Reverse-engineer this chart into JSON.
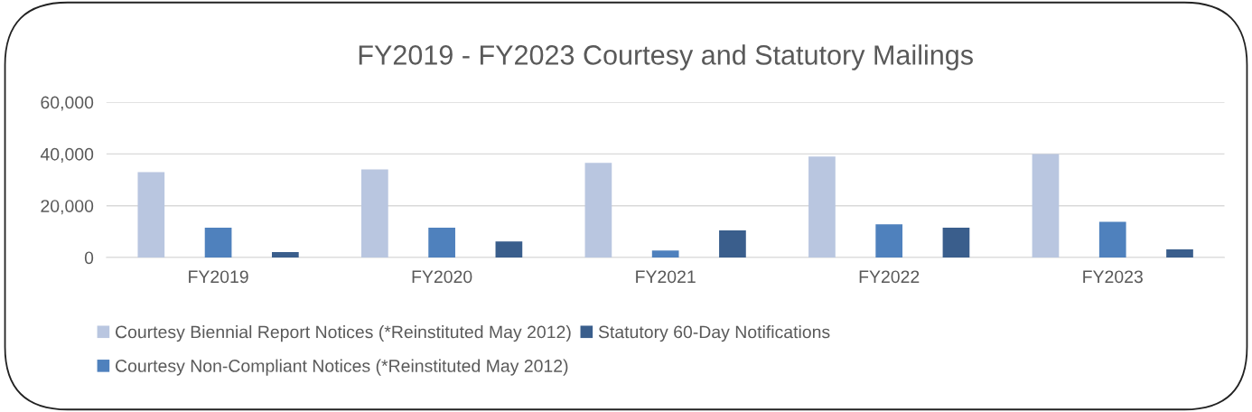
{
  "chart_data": {
    "type": "bar",
    "title": "FY2019 - FY2023 Courtesy and Statutory Mailings",
    "categories": [
      "FY2019",
      "FY2020",
      "FY2021",
      "FY2022",
      "FY2023"
    ],
    "series": [
      {
        "name": "Courtesy Biennial Report Notices (*Reinstituted May 2012)",
        "color": "#b9c6e0",
        "values": [
          33000,
          34000,
          36600,
          39000,
          40000
        ]
      },
      {
        "name": "Courtesy Non-Compliant Notices (*Reinstituted May 2012)",
        "color": "#4f81bd",
        "values": [
          11500,
          11500,
          2700,
          12800,
          13800
        ]
      },
      {
        "name": "Statutory 60-Day Notifications",
        "color": "#3a5e8c",
        "values": [
          2100,
          6200,
          10500,
          11500,
          3100
        ]
      }
    ],
    "ylim": [
      0,
      60000
    ],
    "yticks": [
      {
        "value": 0,
        "label": "0"
      },
      {
        "value": 20000,
        "label": "20,000"
      },
      {
        "value": 40000,
        "label": "40,000"
      },
      {
        "value": 60000,
        "label": "60,000"
      }
    ],
    "grid": "y",
    "legend": "bottom"
  }
}
